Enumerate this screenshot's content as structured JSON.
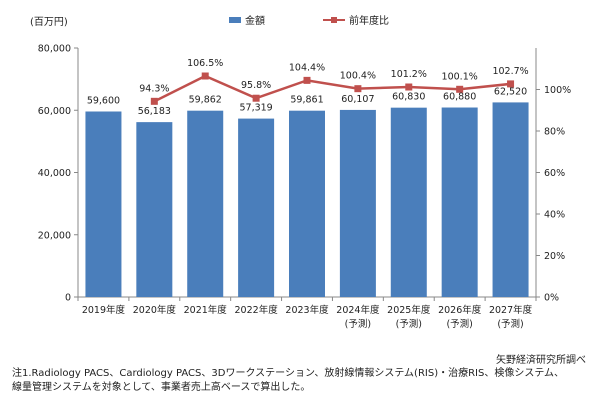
{
  "unit_label": "(百万円)",
  "legend": {
    "bar_label": "金額",
    "line_label": "前年度比"
  },
  "source": "矢野経済研究所調べ",
  "note_lines": [
    "注1.Radiology PACS、Cardiology PACS、3Dワークステーション、放射線情報システム(RIS)・治療RIS、検像システム、",
    "線量管理システムを対象として、事業者売上高ベースで算出した。"
  ],
  "chart_data": {
    "type": "bar",
    "categories": [
      [
        "2019年度"
      ],
      [
        "2020年度"
      ],
      [
        "2021年度"
      ],
      [
        "2022年度"
      ],
      [
        "2023年度"
      ],
      [
        "2024年度",
        "(予測)"
      ],
      [
        "2025年度",
        "(予測)"
      ],
      [
        "2026年度",
        "(予測)"
      ],
      [
        "2027年度",
        "(予測)"
      ]
    ],
    "series": [
      {
        "name": "金額",
        "type": "bar",
        "axis": "left",
        "color": "#4A7EBB",
        "values": [
          59600,
          56183,
          59862,
          57319,
          59861,
          60107,
          60830,
          60880,
          62520
        ],
        "labels": [
          "59,600",
          "56,183",
          "59,862",
          "57,319",
          "59,861",
          "60,107",
          "60,830",
          "60,880",
          "62,520"
        ]
      },
      {
        "name": "前年度比",
        "type": "line",
        "axis": "right",
        "color": "#C0504D",
        "values": [
          null,
          94.3,
          106.5,
          95.8,
          104.4,
          100.4,
          101.2,
          100.1,
          102.7
        ],
        "labels": [
          "",
          "94.3%",
          "106.5%",
          "95.8%",
          "104.4%",
          "100.4%",
          "101.2%",
          "100.1%",
          "102.7%"
        ]
      }
    ],
    "y_left": {
      "ylim": [
        0,
        80000
      ],
      "ticks": [
        0,
        20000,
        40000,
        60000,
        80000
      ],
      "tick_labels": [
        "0",
        "20,000",
        "40,000",
        "60,000",
        "80,000"
      ]
    },
    "y_right": {
      "ylim": [
        0,
        120
      ],
      "ticks": [
        0,
        20,
        40,
        60,
        80,
        100
      ],
      "tick_labels": [
        "0%",
        "20%",
        "40%",
        "60%",
        "80%",
        "100%"
      ]
    },
    "grid": false,
    "legend_position": "top"
  }
}
